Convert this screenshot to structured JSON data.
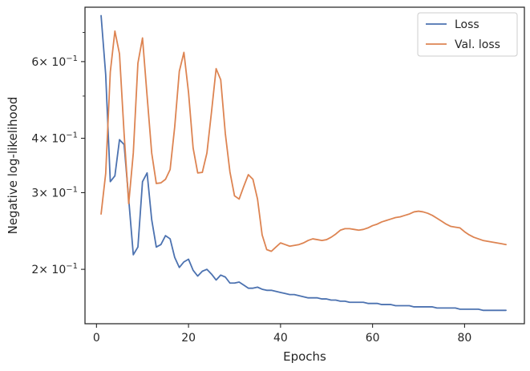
{
  "chart_data": {
    "type": "line",
    "title": "",
    "xlabel": "Epochs",
    "ylabel": "Negative log-likelihood",
    "yscale": "log",
    "xlim": [
      -2.5,
      93
    ],
    "ylim": [
      0.15,
      0.8
    ],
    "grid": false,
    "legend_position": "top-right",
    "x_ticks": [
      0,
      20,
      40,
      60,
      80
    ],
    "x_tick_labels": [
      "0",
      "20",
      "40",
      "60",
      "80"
    ],
    "y_major_ticks": [
      0.2,
      0.3,
      0.4,
      0.6
    ],
    "y_major_tick_labels": [
      {
        "base": "2",
        "exp": "−1"
      },
      {
        "base": "3",
        "exp": "−1"
      },
      {
        "base": "4",
        "exp": "−1"
      },
      {
        "base": "6",
        "exp": "−1"
      }
    ],
    "y_minor_ticks": [
      0.5,
      0.7
    ],
    "tick_label_prefix": "× 10",
    "series": [
      {
        "name": "Loss",
        "color": "#4c72b0",
        "x": [
          1,
          2,
          3,
          4,
          5,
          6,
          7,
          8,
          9,
          10,
          11,
          12,
          13,
          14,
          15,
          16,
          17,
          18,
          19,
          20,
          21,
          22,
          23,
          24,
          25,
          26,
          27,
          28,
          29,
          30,
          31,
          32,
          33,
          34,
          35,
          36,
          37,
          38,
          39,
          40,
          41,
          42,
          43,
          44,
          45,
          46,
          47,
          48,
          49,
          50,
          51,
          52,
          53,
          54,
          55,
          56,
          57,
          58,
          59,
          60,
          61,
          62,
          63,
          64,
          65,
          66,
          67,
          68,
          69,
          70,
          71,
          72,
          73,
          74,
          75,
          76,
          77,
          78,
          79,
          80,
          81,
          82,
          83,
          84,
          85,
          86,
          87,
          88,
          89
        ],
        "values": [
          0.765,
          0.56,
          0.318,
          0.328,
          0.397,
          0.387,
          0.29,
          0.216,
          0.225,
          0.318,
          0.333,
          0.26,
          0.225,
          0.228,
          0.239,
          0.235,
          0.213,
          0.202,
          0.208,
          0.211,
          0.199,
          0.193,
          0.198,
          0.2,
          0.195,
          0.189,
          0.194,
          0.192,
          0.186,
          0.186,
          0.187,
          0.184,
          0.181,
          0.181,
          0.182,
          0.18,
          0.179,
          0.179,
          0.178,
          0.177,
          0.176,
          0.175,
          0.175,
          0.174,
          0.173,
          0.172,
          0.172,
          0.172,
          0.171,
          0.171,
          0.17,
          0.17,
          0.169,
          0.169,
          0.168,
          0.168,
          0.168,
          0.168,
          0.167,
          0.167,
          0.167,
          0.166,
          0.166,
          0.166,
          0.165,
          0.165,
          0.165,
          0.165,
          0.164,
          0.164,
          0.164,
          0.164,
          0.164,
          0.163,
          0.163,
          0.163,
          0.163,
          0.163,
          0.162,
          0.162,
          0.162,
          0.162,
          0.162,
          0.161,
          0.161,
          0.161,
          0.161,
          0.161,
          0.161
        ]
      },
      {
        "name": "Val. loss",
        "color": "#dd8452",
        "x": [
          1,
          2,
          3,
          4,
          5,
          6,
          7,
          8,
          9,
          10,
          11,
          12,
          13,
          14,
          15,
          16,
          17,
          18,
          19,
          20,
          21,
          22,
          23,
          24,
          25,
          26,
          27,
          28,
          29,
          30,
          31,
          32,
          33,
          34,
          35,
          36,
          37,
          38,
          39,
          40,
          41,
          42,
          43,
          44,
          45,
          46,
          47,
          48,
          49,
          50,
          51,
          52,
          53,
          54,
          55,
          56,
          57,
          58,
          59,
          60,
          61,
          62,
          63,
          64,
          65,
          66,
          67,
          68,
          69,
          70,
          71,
          72,
          73,
          74,
          75,
          76,
          77,
          78,
          79,
          80,
          81,
          82,
          83,
          84,
          85,
          86,
          87,
          88,
          89
        ],
        "values": [
          0.268,
          0.332,
          0.568,
          0.705,
          0.625,
          0.41,
          0.283,
          0.37,
          0.595,
          0.68,
          0.5,
          0.37,
          0.315,
          0.316,
          0.322,
          0.339,
          0.425,
          0.57,
          0.63,
          0.51,
          0.38,
          0.333,
          0.334,
          0.37,
          0.46,
          0.578,
          0.545,
          0.41,
          0.335,
          0.295,
          0.29,
          0.31,
          0.33,
          0.322,
          0.29,
          0.24,
          0.222,
          0.22,
          0.225,
          0.23,
          0.228,
          0.226,
          0.227,
          0.228,
          0.23,
          0.233,
          0.235,
          0.234,
          0.233,
          0.234,
          0.237,
          0.241,
          0.246,
          0.248,
          0.248,
          0.247,
          0.246,
          0.247,
          0.249,
          0.252,
          0.254,
          0.257,
          0.259,
          0.261,
          0.263,
          0.264,
          0.266,
          0.268,
          0.271,
          0.272,
          0.271,
          0.269,
          0.266,
          0.262,
          0.258,
          0.254,
          0.251,
          0.25,
          0.249,
          0.244,
          0.24,
          0.237,
          0.235,
          0.233,
          0.232,
          0.231,
          0.23,
          0.229,
          0.228
        ]
      }
    ]
  }
}
